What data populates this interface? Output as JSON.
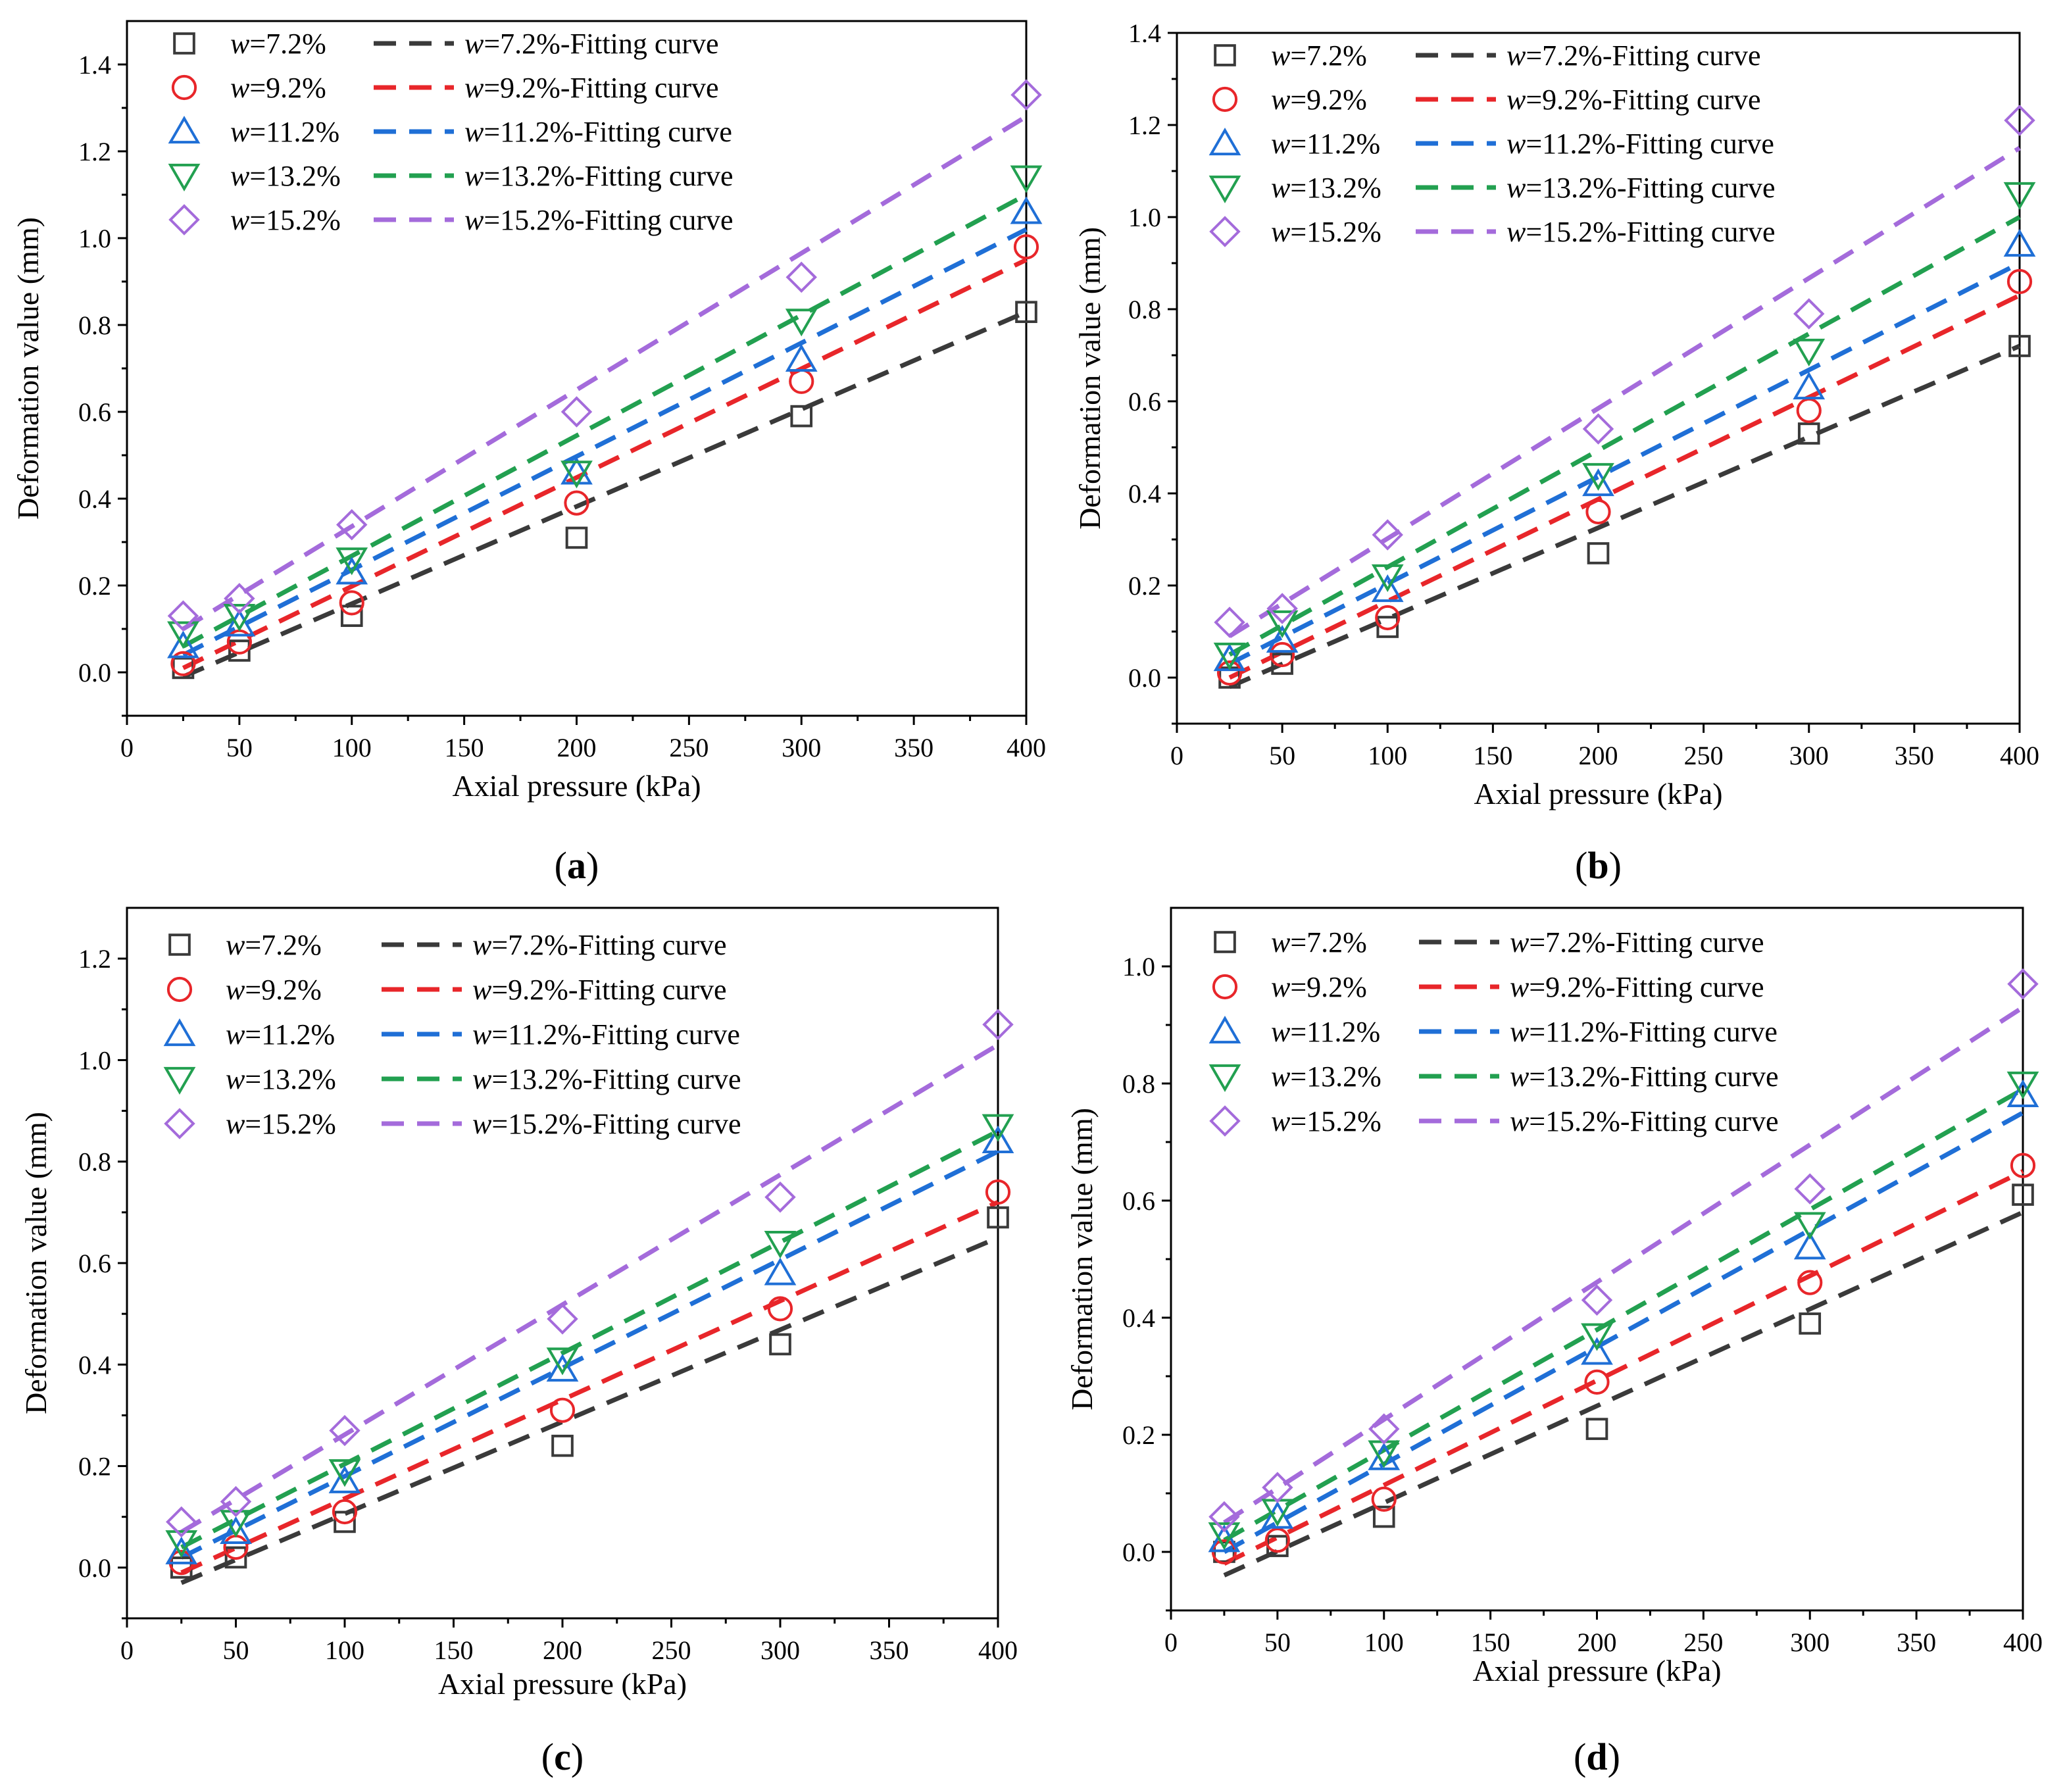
{
  "colors": {
    "w7.2": "#3a3a3a",
    "w9.2": "#e8262a",
    "w11.2": "#1f6fd6",
    "w13.2": "#22a050",
    "w15.2": "#a46bdb"
  },
  "chart_data": [
    {
      "type": "scatter",
      "panel_label": "(a)",
      "panel_letter": "a",
      "xlabel": "Axial pressure (kPa)",
      "ylabel": "Deformation value (mm)",
      "xlim": [
        0,
        400
      ],
      "ylim": [
        -0.1,
        1.5
      ],
      "xticks": [
        "0",
        "50",
        "100",
        "150",
        "200",
        "250",
        "300",
        "350",
        "400"
      ],
      "yticks": [
        "0.0",
        "0.2",
        "0.4",
        "0.6",
        "0.8",
        "1.0",
        "1.2",
        "1.4"
      ],
      "x": [
        25,
        50,
        100,
        200,
        300,
        400
      ],
      "legend_position": "top-left",
      "series": [
        {
          "name": "w=7.2%",
          "moisture": "7.2%",
          "marker": "square",
          "color": "#3a3a3a",
          "values": [
            0.01,
            0.05,
            0.13,
            0.31,
            0.59,
            0.83
          ],
          "fit": [
            -0.01,
            0.83
          ],
          "legend_var": "w",
          "legend_rest": "=7.2%",
          "fit_rest": "=7.2%-Fitting curve"
        },
        {
          "name": "w=9.2%",
          "moisture": "9.2%",
          "marker": "circle",
          "color": "#e8262a",
          "values": [
            0.02,
            0.07,
            0.16,
            0.39,
            0.67,
            0.98
          ],
          "fit": [
            0.01,
            0.95
          ],
          "legend_var": "w",
          "legend_rest": "=9.2%",
          "fit_rest": "=9.2%-Fitting curve"
        },
        {
          "name": "w=11.2%",
          "moisture": "11.2%",
          "marker": "triangle-up",
          "color": "#1f6fd6",
          "values": [
            0.06,
            0.11,
            0.23,
            0.46,
            0.72,
            1.06
          ],
          "fit": [
            0.04,
            1.02
          ],
          "legend_var": "w",
          "legend_rest": "=11.2%",
          "fit_rest": "=11.2%-Fitting curve"
        },
        {
          "name": "w=13.2%",
          "moisture": "13.2%",
          "marker": "triangle-down",
          "color": "#22a050",
          "values": [
            0.09,
            0.13,
            0.26,
            0.46,
            0.81,
            1.14
          ],
          "fit": [
            0.06,
            1.1
          ],
          "legend_var": "w",
          "legend_rest": "=13.2%",
          "fit_rest": "=13.2%-Fitting curve"
        },
        {
          "name": "w=15.2%",
          "moisture": "15.2%",
          "marker": "diamond",
          "color": "#a46bdb",
          "values": [
            0.13,
            0.17,
            0.34,
            0.6,
            0.91,
            1.33
          ],
          "fit": [
            0.1,
            1.28
          ],
          "legend_var": "w",
          "legend_rest": "=15.2%",
          "fit_rest": "=15.2%-Fitting curve"
        }
      ]
    },
    {
      "type": "scatter",
      "panel_label": "(b)",
      "panel_letter": "b",
      "xlabel": "Axial pressure (kPa)",
      "ylabel": "Deformation value (mm)",
      "xlim": [
        0,
        400
      ],
      "ylim": [
        -0.1,
        1.4
      ],
      "xticks": [
        "0",
        "50",
        "100",
        "150",
        "200",
        "250",
        "300",
        "350",
        "400"
      ],
      "yticks": [
        "0.0",
        "0.2",
        "0.4",
        "0.6",
        "0.8",
        "1.0",
        "1.2",
        "1.4"
      ],
      "x": [
        25,
        50,
        100,
        200,
        300,
        400
      ],
      "legend_position": "top-left",
      "series": [
        {
          "name": "w=7.2%",
          "moisture": "7.2%",
          "marker": "square",
          "color": "#3a3a3a",
          "values": [
            0.0,
            0.03,
            0.11,
            0.27,
            0.53,
            0.72
          ],
          "fit": [
            -0.02,
            0.72
          ],
          "legend_var": "w",
          "legend_rest": "=7.2%",
          "fit_rest": "=7.2%-Fitting curve"
        },
        {
          "name": "w=9.2%",
          "moisture": "9.2%",
          "marker": "circle",
          "color": "#e8262a",
          "values": [
            0.01,
            0.05,
            0.13,
            0.36,
            0.58,
            0.86
          ],
          "fit": [
            0.0,
            0.83
          ],
          "legend_var": "w",
          "legend_rest": "=9.2%",
          "fit_rest": "=9.2%-Fitting curve"
        },
        {
          "name": "w=11.2%",
          "moisture": "11.2%",
          "marker": "triangle-up",
          "color": "#1f6fd6",
          "values": [
            0.04,
            0.08,
            0.19,
            0.42,
            0.63,
            0.94
          ],
          "fit": [
            0.03,
            0.9
          ],
          "legend_var": "w",
          "legend_rest": "=11.2%",
          "fit_rest": "=11.2%-Fitting curve"
        },
        {
          "name": "w=13.2%",
          "moisture": "13.2%",
          "marker": "triangle-down",
          "color": "#22a050",
          "values": [
            0.05,
            0.12,
            0.22,
            0.44,
            0.71,
            1.05
          ],
          "fit": [
            0.05,
            1.0
          ],
          "legend_var": "w",
          "legend_rest": "=13.2%",
          "fit_rest": "=13.2%-Fitting curve"
        },
        {
          "name": "w=15.2%",
          "moisture": "15.2%",
          "marker": "diamond",
          "color": "#a46bdb",
          "values": [
            0.12,
            0.15,
            0.31,
            0.54,
            0.79,
            1.21
          ],
          "fit": [
            0.09,
            1.15
          ],
          "legend_var": "w",
          "legend_rest": "=15.2%",
          "fit_rest": "=15.2%-Fitting curve"
        }
      ]
    },
    {
      "type": "scatter",
      "panel_label": "(c)",
      "panel_letter": "c",
      "xlabel": "Axial pressure (kPa)",
      "ylabel": "Deformation value (mm)",
      "xlim": [
        0,
        400
      ],
      "ylim": [
        -0.1,
        1.3
      ],
      "xticks": [
        "0",
        "50",
        "100",
        "150",
        "200",
        "250",
        "300",
        "350",
        "400"
      ],
      "yticks": [
        "0.0",
        "0.2",
        "0.4",
        "0.6",
        "0.8",
        "1.0",
        "1.2"
      ],
      "x": [
        25,
        50,
        100,
        200,
        300,
        400
      ],
      "legend_position": "top-left",
      "series": [
        {
          "name": "w=7.2%",
          "moisture": "7.2%",
          "marker": "square",
          "color": "#3a3a3a",
          "values": [
            0.0,
            0.02,
            0.09,
            0.24,
            0.44,
            0.69
          ],
          "fit": [
            -0.03,
            0.65
          ],
          "legend_var": "w",
          "legend_rest": "=7.2%",
          "fit_rest": "=7.2%-Fitting curve"
        },
        {
          "name": "w=9.2%",
          "moisture": "9.2%",
          "marker": "circle",
          "color": "#e8262a",
          "values": [
            0.01,
            0.04,
            0.11,
            0.31,
            0.51,
            0.74
          ],
          "fit": [
            -0.01,
            0.72
          ],
          "legend_var": "w",
          "legend_rest": "=9.2%",
          "fit_rest": "=9.2%-Fitting curve"
        },
        {
          "name": "w=11.2%",
          "moisture": "11.2%",
          "marker": "triangle-up",
          "color": "#1f6fd6",
          "values": [
            0.03,
            0.07,
            0.17,
            0.39,
            0.58,
            0.84
          ],
          "fit": [
            0.02,
            0.82
          ],
          "legend_var": "w",
          "legend_rest": "=11.2%",
          "fit_rest": "=11.2%-Fitting curve"
        },
        {
          "name": "w=13.2%",
          "moisture": "13.2%",
          "marker": "triangle-down",
          "color": "#22a050",
          "values": [
            0.05,
            0.09,
            0.19,
            0.41,
            0.64,
            0.87
          ],
          "fit": [
            0.04,
            0.86
          ],
          "legend_var": "w",
          "legend_rest": "=13.2%",
          "fit_rest": "=13.2%-Fitting curve"
        },
        {
          "name": "w=15.2%",
          "moisture": "15.2%",
          "marker": "diamond",
          "color": "#a46bdb",
          "values": [
            0.09,
            0.13,
            0.27,
            0.49,
            0.73,
            1.07
          ],
          "fit": [
            0.07,
            1.03
          ],
          "legend_var": "w",
          "legend_rest": "=15.2%",
          "fit_rest": "=15.2%-Fitting curve"
        }
      ]
    },
    {
      "type": "scatter",
      "panel_label": "(d)",
      "panel_letter": "d",
      "xlabel": "Axial pressure (kPa)",
      "ylabel": "Deformation value (mm)",
      "xlim": [
        0,
        400
      ],
      "ylim": [
        -0.1,
        1.1
      ],
      "xticks": [
        "0",
        "50",
        "100",
        "150",
        "200",
        "250",
        "300",
        "350",
        "400"
      ],
      "yticks": [
        "0.0",
        "0.2",
        "0.4",
        "0.6",
        "0.8",
        "1.0"
      ],
      "x": [
        25,
        50,
        100,
        200,
        300,
        400
      ],
      "legend_position": "top-left",
      "series": [
        {
          "name": "w=7.2%",
          "moisture": "7.2%",
          "marker": "square",
          "color": "#3a3a3a",
          "values": [
            0.0,
            0.01,
            0.06,
            0.21,
            0.39,
            0.61
          ],
          "fit": [
            -0.04,
            0.58
          ],
          "legend_var": "w",
          "legend_rest": "=7.2%",
          "fit_rest": "=7.2%-Fitting curve"
        },
        {
          "name": "w=9.2%",
          "moisture": "9.2%",
          "marker": "circle",
          "color": "#e8262a",
          "values": [
            0.0,
            0.02,
            0.09,
            0.29,
            0.46,
            0.66
          ],
          "fit": [
            -0.02,
            0.65
          ],
          "legend_var": "w",
          "legend_rest": "=9.2%",
          "fit_rest": "=9.2%-Fitting curve"
        },
        {
          "name": "w=11.2%",
          "moisture": "11.2%",
          "marker": "triangle-up",
          "color": "#1f6fd6",
          "values": [
            0.02,
            0.06,
            0.16,
            0.34,
            0.52,
            0.78
          ],
          "fit": [
            0.0,
            0.75
          ],
          "legend_var": "w",
          "legend_rest": "=11.2%",
          "fit_rest": "=11.2%-Fitting curve"
        },
        {
          "name": "w=13.2%",
          "moisture": "13.2%",
          "marker": "triangle-down",
          "color": "#22a050",
          "values": [
            0.03,
            0.07,
            0.17,
            0.37,
            0.56,
            0.8
          ],
          "fit": [
            0.02,
            0.79
          ],
          "legend_var": "w",
          "legend_rest": "=13.2%",
          "fit_rest": "=13.2%-Fitting curve"
        },
        {
          "name": "w=15.2%",
          "moisture": "15.2%",
          "marker": "diamond",
          "color": "#a46bdb",
          "values": [
            0.06,
            0.11,
            0.21,
            0.43,
            0.62,
            0.97
          ],
          "fit": [
            0.05,
            0.93
          ],
          "legend_var": "w",
          "legend_rest": "=15.2%",
          "fit_rest": "=15.2%-Fitting curve"
        }
      ]
    }
  ]
}
